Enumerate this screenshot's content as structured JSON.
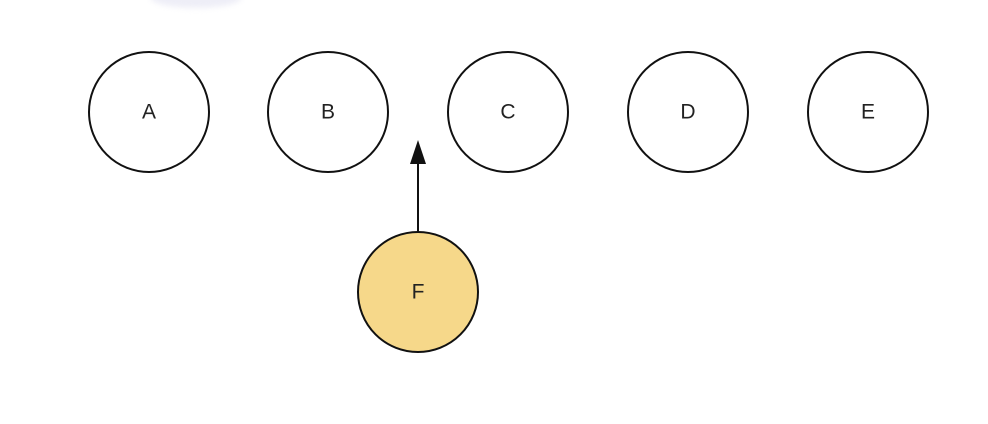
{
  "diagram": {
    "nodes": [
      {
        "id": "A",
        "label": "A",
        "fill": "#ffffff"
      },
      {
        "id": "B",
        "label": "B",
        "fill": "#ffffff"
      },
      {
        "id": "C",
        "label": "C",
        "fill": "#ffffff"
      },
      {
        "id": "D",
        "label": "D",
        "fill": "#ffffff"
      },
      {
        "id": "E",
        "label": "E",
        "fill": "#ffffff"
      },
      {
        "id": "F",
        "label": "F",
        "fill": "#f6d88a"
      }
    ],
    "edges": [
      {
        "from": "F",
        "to": "between B and C",
        "style": "arrow"
      }
    ],
    "colors": {
      "stroke": "#111111",
      "highlight": "#f6d88a",
      "background": "#ffffff"
    }
  }
}
